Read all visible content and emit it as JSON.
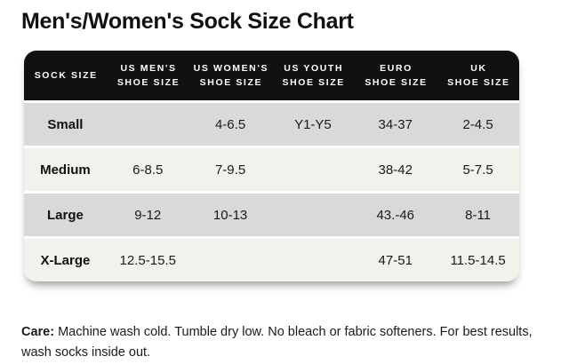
{
  "page": {
    "title": "Men's/Women's Sock Size Chart",
    "care_label": "Care:",
    "care_text": " Machine wash cold. Tumble dry low. No bleach or fabric softeners. For best results, wash socks inside out."
  },
  "colors": {
    "header_bg": "#111111",
    "header_text": "#ffffff",
    "row_gray": "#d9d9d9",
    "row_cream": "#f3f1ec",
    "body_text": "#1a1a1a",
    "page_bg": "#ffffff"
  },
  "chart_data": {
    "type": "table",
    "title": "Men's/Women's Sock Size Chart",
    "columns": [
      "SOCK SIZE",
      "US MEN'S SHOE SIZE",
      "US WOMEN'S SHOE SIZE",
      "US YOUTH SHOE SIZE",
      "EURO SHOE SIZE",
      "UK SHOE SIZE"
    ],
    "header_lines": [
      [
        "SOCK SIZE",
        ""
      ],
      [
        "US MEN'S",
        "SHOE SIZE"
      ],
      [
        "US WOMEN'S",
        "SHOE SIZE"
      ],
      [
        "US YOUTH",
        "SHOE SIZE"
      ],
      [
        "EURO",
        "SHOE SIZE"
      ],
      [
        "UK",
        "SHOE SIZE"
      ]
    ],
    "rows": [
      [
        "Small",
        "",
        "4-6.5",
        "Y1-Y5",
        "34-37",
        "2-4.5"
      ],
      [
        "Medium",
        "6-8.5",
        "7-9.5",
        "",
        "38-42",
        "5-7.5"
      ],
      [
        "Large",
        "9-12",
        "10-13",
        "",
        "43.-46",
        "8-11"
      ],
      [
        "X-Large",
        "12.5-15.5",
        "",
        "",
        "47-51",
        "11.5-14.5"
      ]
    ]
  }
}
